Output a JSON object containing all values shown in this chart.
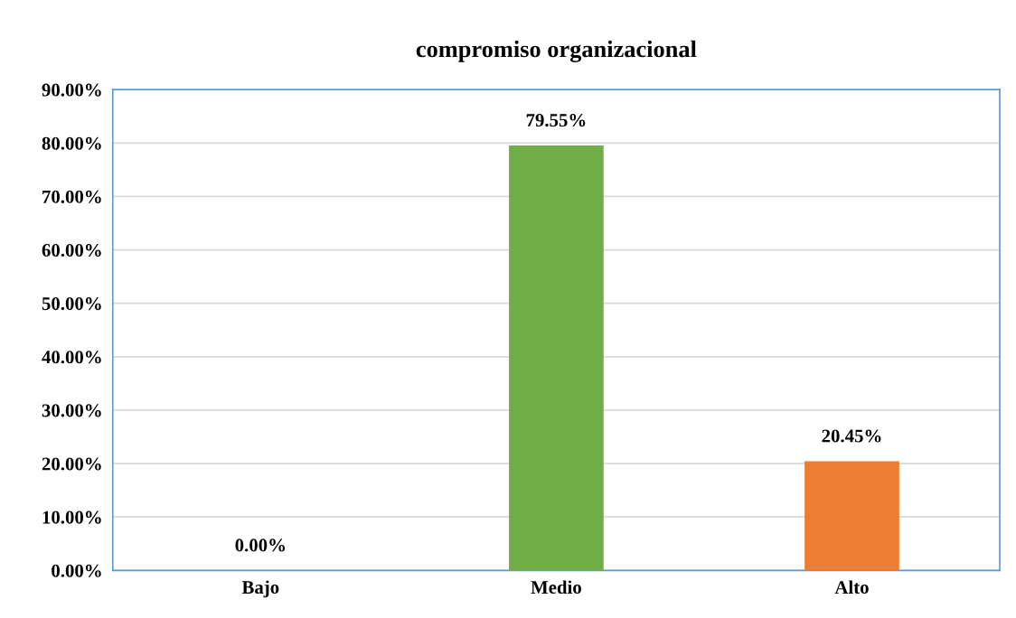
{
  "chart_data": {
    "type": "bar",
    "title": "compromiso organizacional",
    "categories": [
      "Bajo",
      "Medio",
      "Alto"
    ],
    "values": [
      0,
      79.55,
      20.45
    ],
    "colors": [
      "#4472c4",
      "#70ad47",
      "#ed7d31"
    ],
    "value_labels": [
      "0.00%",
      "79.55%",
      "20.45%"
    ],
    "ylim": [
      0,
      90
    ],
    "yticks": [
      {
        "value": 0,
        "label": "0.00%"
      },
      {
        "value": 10,
        "label": "10.00%"
      },
      {
        "value": 20,
        "label": "20.00%"
      },
      {
        "value": 30,
        "label": "30.00%"
      },
      {
        "value": 40,
        "label": "40.00%"
      },
      {
        "value": 50,
        "label": "50.00%"
      },
      {
        "value": 60,
        "label": "60.00%"
      },
      {
        "value": 70,
        "label": "70.00%"
      },
      {
        "value": 80,
        "label": "80.00%"
      },
      {
        "value": 90,
        "label": "90.00%"
      }
    ],
    "grid": "y"
  }
}
